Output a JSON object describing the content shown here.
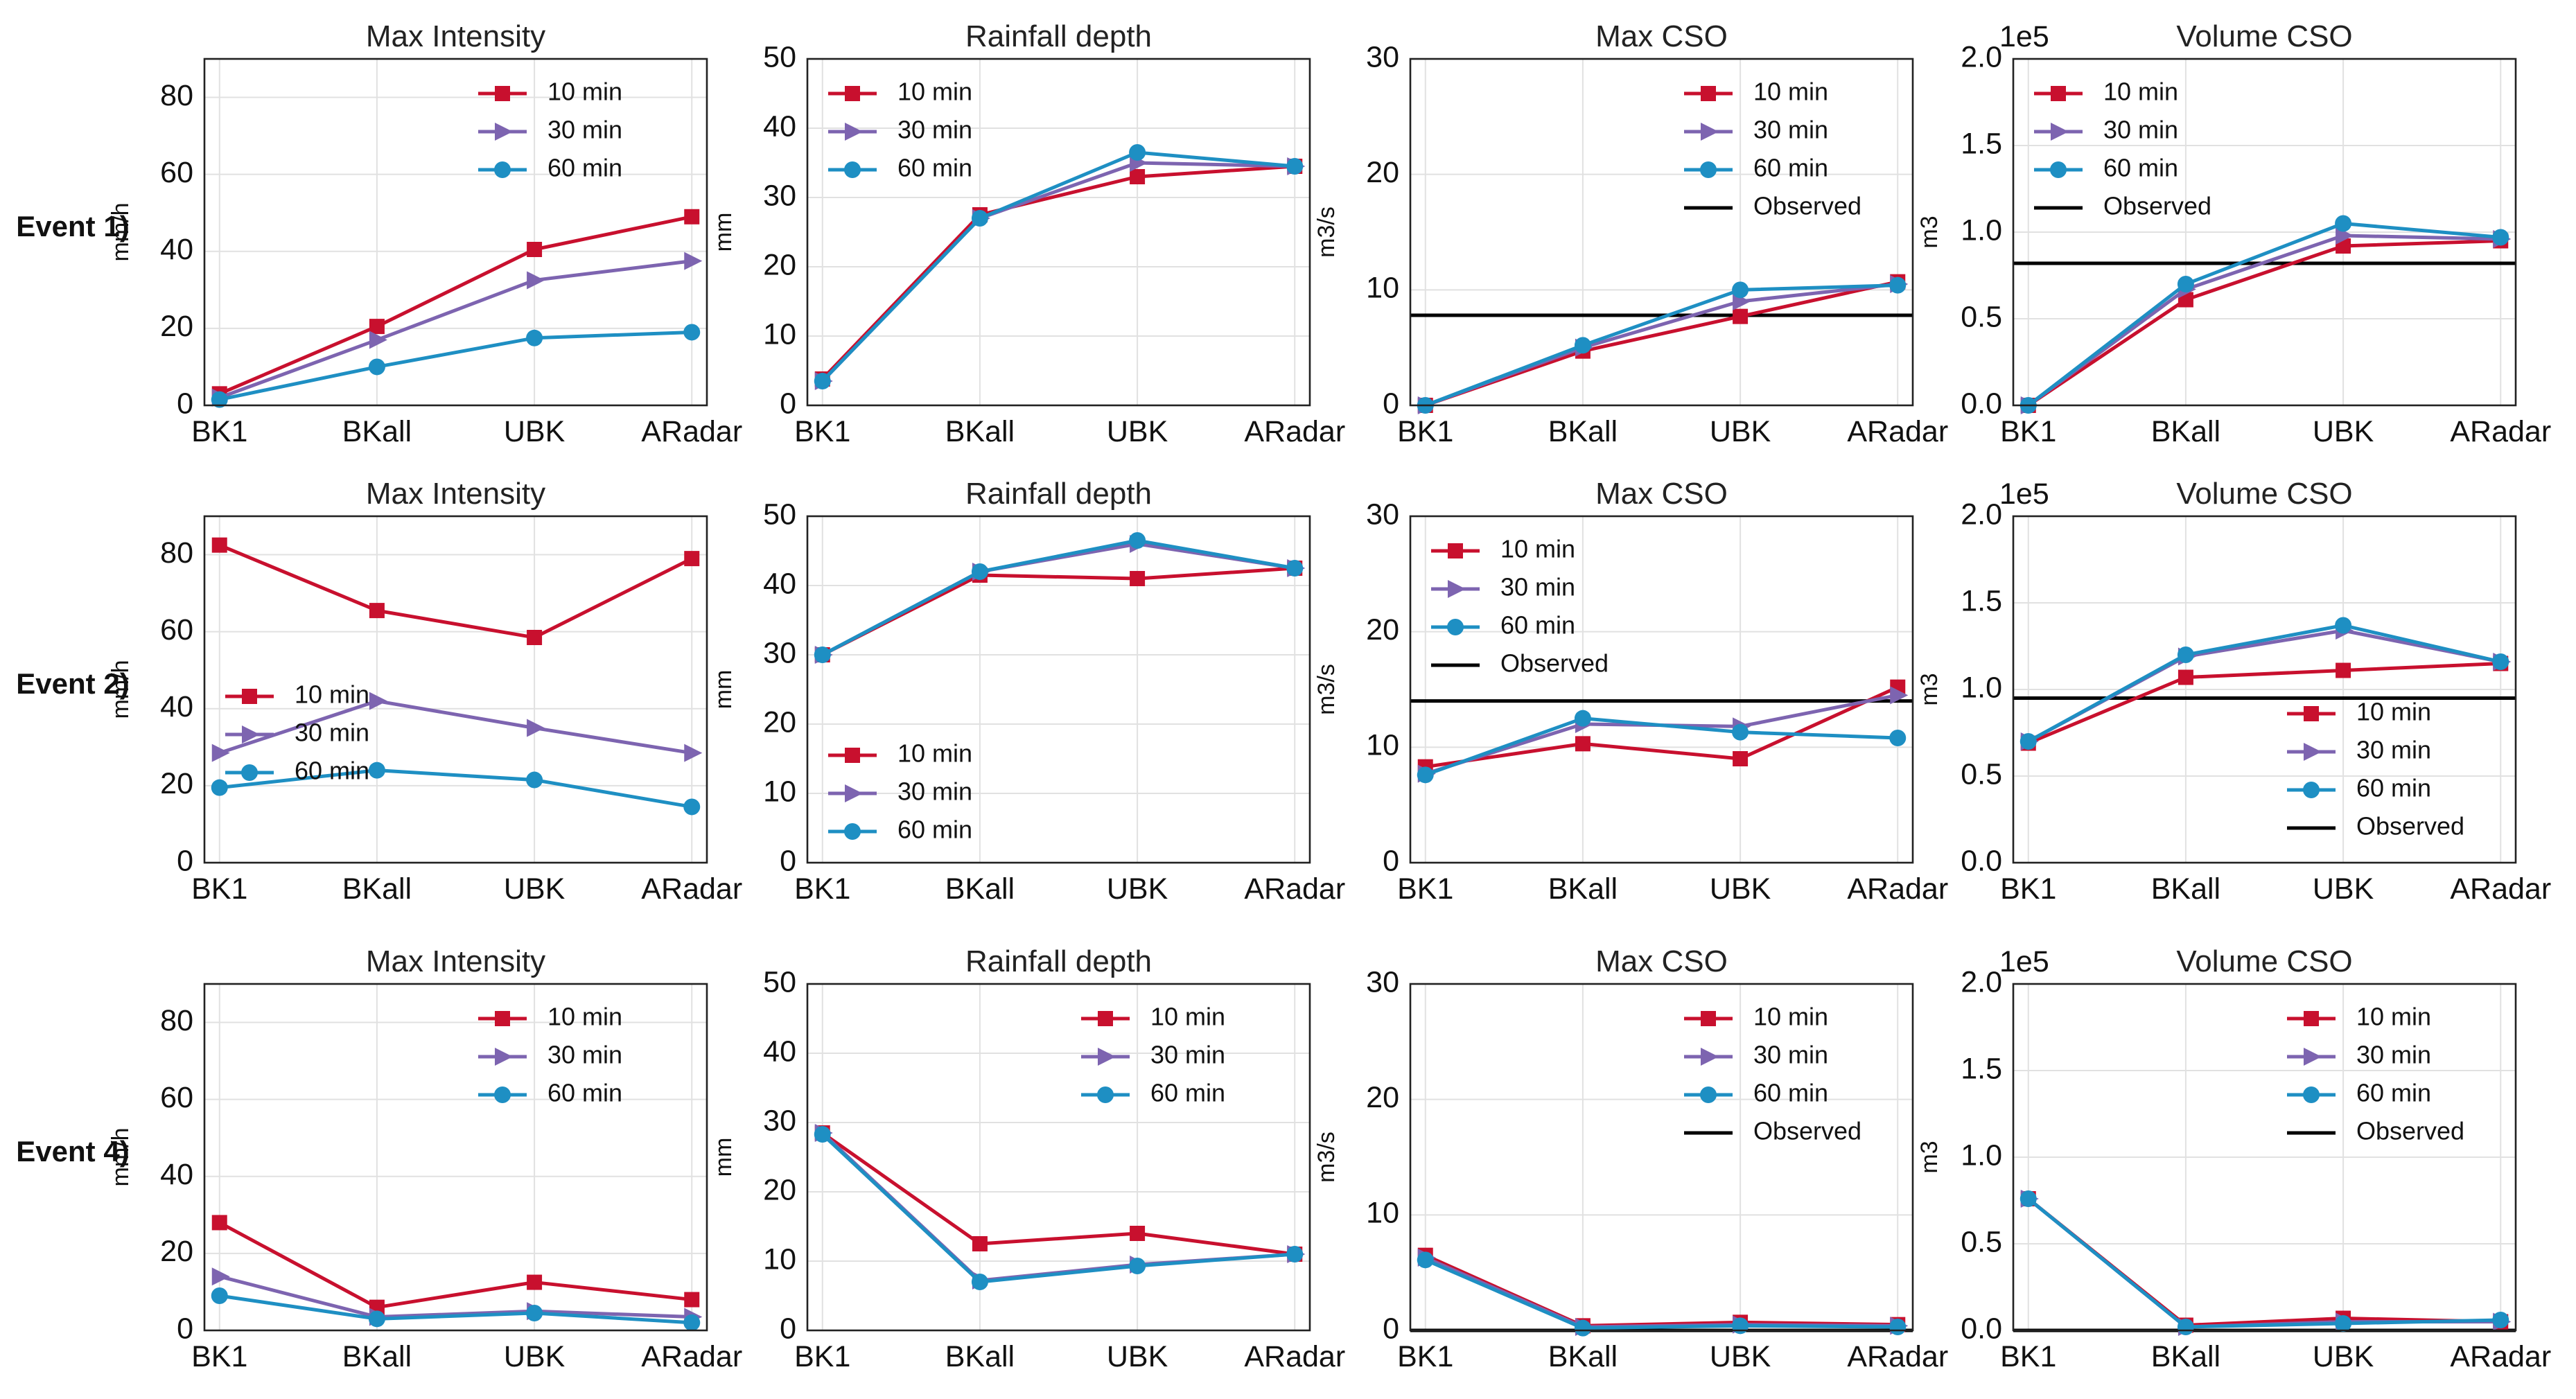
{
  "colors": {
    "10 min": "#c8102e",
    "30 min": "#7d64b0",
    "60 min": "#1e8fc3",
    "Observed": "#000000"
  },
  "series_names": [
    "10 min",
    "30 min",
    "60 min"
  ],
  "observed_label": "Observed",
  "events": [
    "Event 1)",
    "Event 2)",
    "Event 4)"
  ],
  "chart_data": [
    {
      "type": "line",
      "event": "Event 1)",
      "title": "Max Intensity",
      "ylabel": "mm/h",
      "ylim": [
        0,
        90
      ],
      "yticks": [
        0,
        20,
        40,
        60,
        80
      ],
      "categories": [
        "BK1",
        "BKall",
        "UBK",
        "ARadar"
      ],
      "legend": "top-right",
      "observed": null,
      "series": [
        {
          "name": "10 min",
          "values": [
            3,
            20.5,
            40.5,
            49
          ]
        },
        {
          "name": "30 min",
          "values": [
            2,
            17,
            32.5,
            37.5
          ]
        },
        {
          "name": "60 min",
          "values": [
            1.5,
            10,
            17.5,
            19
          ]
        }
      ]
    },
    {
      "type": "line",
      "event": "Event 1)",
      "title": "Rainfall depth",
      "ylabel": "mm",
      "ylim": [
        0,
        50
      ],
      "yticks": [
        0,
        10,
        20,
        30,
        40,
        50
      ],
      "categories": [
        "BK1",
        "BKall",
        "UBK",
        "ARadar"
      ],
      "legend": "top-left",
      "observed": null,
      "series": [
        {
          "name": "10 min",
          "values": [
            3.8,
            27.5,
            33,
            34.5
          ]
        },
        {
          "name": "30 min",
          "values": [
            3.5,
            27,
            35,
            34.5
          ]
        },
        {
          "name": "60 min",
          "values": [
            3.5,
            27,
            36.5,
            34.5
          ]
        }
      ]
    },
    {
      "type": "line",
      "event": "Event 1)",
      "title": "Max CSO",
      "ylabel": "m3/s",
      "ylim": [
        0,
        30
      ],
      "yticks": [
        0,
        10,
        20,
        30
      ],
      "categories": [
        "BK1",
        "BKall",
        "UBK",
        "ARadar"
      ],
      "legend": "top-right",
      "observed": 7.8,
      "series": [
        {
          "name": "10 min",
          "values": [
            0,
            4.7,
            7.7,
            10.7
          ]
        },
        {
          "name": "30 min",
          "values": [
            0,
            5,
            9,
            10.5
          ]
        },
        {
          "name": "60 min",
          "values": [
            0,
            5.2,
            10,
            10.4
          ]
        }
      ]
    },
    {
      "type": "line",
      "event": "Event 1)",
      "title": "Volume CSO",
      "ylabel": "m3",
      "ylim": [
        0,
        2.0
      ],
      "yticks": [
        "0.0",
        "0.5",
        "1.0",
        "1.5",
        "2.0"
      ],
      "offset": "1e5",
      "categories": [
        "BK1",
        "BKall",
        "UBK",
        "ARadar"
      ],
      "legend": "top-left",
      "observed": 0.82,
      "series": [
        {
          "name": "10 min",
          "values": [
            0,
            0.61,
            0.92,
            0.95
          ]
        },
        {
          "name": "30 min",
          "values": [
            0,
            0.67,
            0.98,
            0.96
          ]
        },
        {
          "name": "60 min",
          "values": [
            0,
            0.7,
            1.05,
            0.97
          ]
        }
      ]
    },
    {
      "type": "line",
      "event": "Event 2)",
      "title": "Max Intensity",
      "ylabel": "mm/h",
      "ylim": [
        0,
        90
      ],
      "yticks": [
        0,
        20,
        40,
        60,
        80
      ],
      "categories": [
        "BK1",
        "BKall",
        "UBK",
        "ARadar"
      ],
      "legend": "center-left",
      "observed": null,
      "series": [
        {
          "name": "10 min",
          "values": [
            82.5,
            65.5,
            58.5,
            79
          ]
        },
        {
          "name": "30 min",
          "values": [
            28.5,
            42,
            35,
            28.5
          ]
        },
        {
          "name": "60 min",
          "values": [
            19.5,
            24,
            21.5,
            14.5
          ]
        }
      ]
    },
    {
      "type": "line",
      "event": "Event 2)",
      "title": "Rainfall depth",
      "ylabel": "mm",
      "ylim": [
        0,
        50
      ],
      "yticks": [
        0,
        10,
        20,
        30,
        40,
        50
      ],
      "categories": [
        "BK1",
        "BKall",
        "UBK",
        "ARadar"
      ],
      "legend": "bottom-left",
      "observed": null,
      "series": [
        {
          "name": "10 min",
          "values": [
            30,
            41.5,
            41,
            42.5
          ]
        },
        {
          "name": "30 min",
          "values": [
            30,
            42,
            46,
            42.5
          ]
        },
        {
          "name": "60 min",
          "values": [
            30,
            42,
            46.5,
            42.5
          ]
        }
      ]
    },
    {
      "type": "line",
      "event": "Event 2)",
      "title": "Max CSO",
      "ylabel": "m3/s",
      "ylim": [
        0,
        30
      ],
      "yticks": [
        0,
        10,
        20,
        30
      ],
      "categories": [
        "BK1",
        "BKall",
        "UBK",
        "ARadar"
      ],
      "legend": "top-left",
      "observed": 14,
      "series": [
        {
          "name": "10 min",
          "values": [
            8.3,
            10.3,
            9,
            15.2
          ]
        },
        {
          "name": "30 min",
          "values": [
            7.7,
            12,
            11.8,
            14.5
          ]
        },
        {
          "name": "60 min",
          "values": [
            7.6,
            12.5,
            11.3,
            10.8
          ]
        }
      ]
    },
    {
      "type": "line",
      "event": "Event 2)",
      "title": "Volume CSO",
      "ylabel": "m3",
      "ylim": [
        0,
        2.0
      ],
      "yticks": [
        "0.0",
        "0.5",
        "1.0",
        "1.5",
        "2.0"
      ],
      "offset": "1e5",
      "categories": [
        "BK1",
        "BKall",
        "UBK",
        "ARadar"
      ],
      "legend": "bottom-right",
      "observed": 0.95,
      "series": [
        {
          "name": "10 min",
          "values": [
            0.69,
            1.07,
            1.11,
            1.15
          ]
        },
        {
          "name": "30 min",
          "values": [
            0.7,
            1.19,
            1.34,
            1.16
          ]
        },
        {
          "name": "60 min",
          "values": [
            0.7,
            1.2,
            1.37,
            1.16
          ]
        }
      ]
    },
    {
      "type": "line",
      "event": "Event 4)",
      "title": "Max Intensity",
      "ylabel": "mm/h",
      "ylim": [
        0,
        90
      ],
      "yticks": [
        0,
        20,
        40,
        60,
        80
      ],
      "categories": [
        "BK1",
        "BKall",
        "UBK",
        "ARadar"
      ],
      "legend": "top-right",
      "observed": null,
      "series": [
        {
          "name": "10 min",
          "values": [
            28,
            6,
            12.5,
            8
          ]
        },
        {
          "name": "30 min",
          "values": [
            14,
            3.5,
            5,
            3.5
          ]
        },
        {
          "name": "60 min",
          "values": [
            9,
            3,
            4.5,
            2
          ]
        }
      ]
    },
    {
      "type": "line",
      "event": "Event 4)",
      "title": "Rainfall depth",
      "ylabel": "mm",
      "ylim": [
        0,
        50
      ],
      "yticks": [
        0,
        10,
        20,
        30,
        40,
        50
      ],
      "categories": [
        "BK1",
        "BKall",
        "UBK",
        "ARadar"
      ],
      "legend": "top-right",
      "observed": null,
      "series": [
        {
          "name": "10 min",
          "values": [
            28.5,
            12.5,
            14,
            11
          ]
        },
        {
          "name": "30 min",
          "values": [
            28.5,
            7.2,
            9.5,
            11
          ]
        },
        {
          "name": "60 min",
          "values": [
            28.3,
            7,
            9.3,
            11
          ]
        }
      ]
    },
    {
      "type": "line",
      "event": "Event 4)",
      "title": "Max CSO",
      "ylabel": "m3/s",
      "ylim": [
        0,
        30
      ],
      "yticks": [
        0,
        10,
        20,
        30
      ],
      "categories": [
        "BK1",
        "BKall",
        "UBK",
        "ARadar"
      ],
      "legend": "top-right",
      "observed": 0,
      "series": [
        {
          "name": "10 min",
          "values": [
            6.5,
            0.4,
            0.7,
            0.5
          ]
        },
        {
          "name": "30 min",
          "values": [
            6.3,
            0.3,
            0.5,
            0.4
          ]
        },
        {
          "name": "60 min",
          "values": [
            6.1,
            0.2,
            0.4,
            0.3
          ]
        }
      ]
    },
    {
      "type": "line",
      "event": "Event 4)",
      "title": "Volume CSO",
      "ylabel": "m3",
      "ylim": [
        0,
        2.0
      ],
      "yticks": [
        "0.0",
        "0.5",
        "1.0",
        "1.5",
        "2.0"
      ],
      "offset": "1e5",
      "categories": [
        "BK1",
        "BKall",
        "UBK",
        "ARadar"
      ],
      "legend": "top-right",
      "observed": 0,
      "series": [
        {
          "name": "10 min",
          "values": [
            0.76,
            0.03,
            0.07,
            0.05
          ]
        },
        {
          "name": "30 min",
          "values": [
            0.76,
            0.02,
            0.05,
            0.05
          ]
        },
        {
          "name": "60 min",
          "values": [
            0.76,
            0.02,
            0.04,
            0.06
          ]
        }
      ]
    }
  ]
}
